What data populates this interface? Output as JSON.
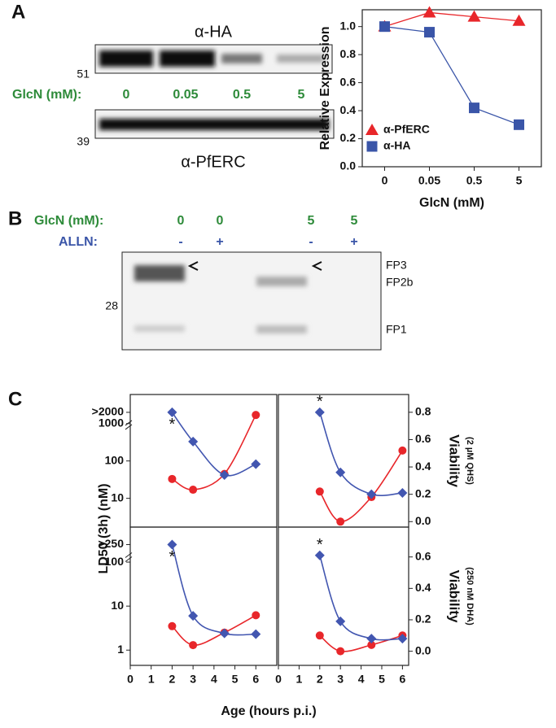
{
  "panel_labels": [
    "A",
    "B",
    "C"
  ],
  "blot_a": {
    "top_label": "α-HA",
    "top_marker": "51",
    "lane_title": "GlcN (mM):",
    "lanes": [
      "0",
      "0.05",
      "0.5",
      "5"
    ],
    "bottom_marker": "39",
    "bottom_label": "α-PfERC"
  },
  "blot_b": {
    "glcn_title": "GlcN (mM):",
    "glcn": [
      "0",
      "0",
      "5",
      "5"
    ],
    "alln_title": "ALLN:",
    "alln": [
      "-",
      "+",
      "-",
      "+"
    ],
    "marker": "28",
    "bands": [
      "FP3",
      "FP2b",
      "FP1"
    ]
  },
  "panel_c": {
    "y_label": "LD50 (3h)  (nM)",
    "x_label": "Age (hours p.i.)"
  },
  "chart_data": [
    {
      "type": "line",
      "x_label": "GlcN (mM)",
      "y_label": "Relative Expression",
      "categories": [
        "0",
        "0.05",
        "0.5",
        "5"
      ],
      "ylim": [
        0,
        1.12
      ],
      "yticks": [
        {
          "value": 0,
          "label": "0.0"
        },
        {
          "value": 0.2,
          "label": "0.2"
        },
        {
          "value": 0.4,
          "label": "0.4"
        },
        {
          "value": 0.6,
          "label": "0.6"
        },
        {
          "value": 0.8,
          "label": "0.8"
        },
        {
          "value": 1,
          "label": "1.0"
        }
      ],
      "legend": "lower left",
      "series": [
        {
          "name": "α-PfERC",
          "color": "#e8262a",
          "marker": "triangle",
          "values": [
            1.0,
            1.1,
            1.07,
            1.04
          ]
        },
        {
          "name": "α-HA",
          "color": "#3a55a8",
          "marker": "square",
          "values": [
            1.0,
            0.96,
            0.42,
            0.3
          ]
        }
      ]
    },
    {
      "type": "line",
      "smooth": true,
      "log_y": true,
      "xlim": [
        0,
        7
      ],
      "ylim": [
        1.7,
        6000
      ],
      "yticks": [
        10,
        100,
        1000,
        {
          "value": 2000,
          "label": ">2000"
        }
      ],
      "annotations": [
        "*"
      ],
      "series": [
        {
          "color": "#e8262a",
          "marker": "circle",
          "x": [
            2,
            3,
            4.5,
            6
          ],
          "values": [
            33,
            17,
            45,
            1700
          ]
        },
        {
          "color": "#4256b0",
          "marker": "diamond",
          "x": [
            2,
            3,
            4.5,
            6
          ],
          "values": [
            2000,
            330,
            42,
            82
          ]
        }
      ]
    },
    {
      "type": "line",
      "smooth": true,
      "xlim": [
        0,
        6.3
      ],
      "y2lim": [
        -0.04,
        0.93
      ],
      "y2ticks": [
        {
          "value": 0,
          "label": "0.0"
        },
        {
          "value": 0.2,
          "label": "0.2"
        },
        {
          "value": 0.4,
          "label": "0.4"
        },
        {
          "value": 0.6,
          "label": "0.6"
        },
        {
          "value": 0.8,
          "label": "0.8"
        }
      ],
      "y2_label": "Viability",
      "y2_note": "(2 µM QHS)",
      "annotations": [
        "*"
      ],
      "series": [
        {
          "color": "#e8262a",
          "marker": "circle",
          "axis": "y2",
          "x": [
            2,
            3,
            4.5,
            6
          ],
          "values": [
            0.22,
            0.0,
            0.18,
            0.52
          ]
        },
        {
          "color": "#4256b0",
          "marker": "diamond",
          "axis": "y2",
          "x": [
            2,
            3,
            4.5,
            6
          ],
          "values": [
            0.8,
            0.36,
            0.2,
            0.21
          ]
        }
      ]
    },
    {
      "type": "line",
      "smooth": true,
      "log_y": true,
      "xlim": [
        0,
        7
      ],
      "ylim": [
        0.45,
        625
      ],
      "yticks": [
        1,
        10,
        100,
        {
          "value": 250,
          "label": ">250"
        }
      ],
      "xticks": [
        0,
        1,
        2,
        3,
        4,
        5,
        6
      ],
      "annotations": [
        "*"
      ],
      "series": [
        {
          "color": "#e8262a",
          "marker": "circle",
          "x": [
            2,
            3,
            4.5,
            6
          ],
          "values": [
            3.5,
            1.3,
            2.5,
            6.2
          ]
        },
        {
          "color": "#4256b0",
          "marker": "diamond",
          "x": [
            2,
            3,
            4.5,
            6
          ],
          "values": [
            250,
            6,
            2.4,
            2.3
          ]
        }
      ]
    },
    {
      "type": "line",
      "smooth": true,
      "xlim": [
        0,
        6.3
      ],
      "y2lim": [
        -0.09,
        0.79
      ],
      "y2ticks": [
        {
          "value": 0,
          "label": "0.0"
        },
        {
          "value": 0.2,
          "label": "0.2"
        },
        {
          "value": 0.4,
          "label": "0.4"
        },
        {
          "value": 0.6,
          "label": "0.6"
        }
      ],
      "xticks": [
        0,
        1,
        2,
        3,
        4,
        5,
        6
      ],
      "y2_label": "Viability",
      "y2_note": "(250 nM DHA)",
      "annotations": [
        "*"
      ],
      "series": [
        {
          "color": "#e8262a",
          "marker": "circle",
          "axis": "y2",
          "x": [
            2,
            3,
            4.5,
            6
          ],
          "values": [
            0.1,
            0.0,
            0.04,
            0.1
          ]
        },
        {
          "color": "#4256b0",
          "marker": "diamond",
          "axis": "y2",
          "x": [
            2,
            3,
            4.5,
            6
          ],
          "values": [
            0.61,
            0.19,
            0.08,
            0.08
          ]
        }
      ]
    }
  ]
}
